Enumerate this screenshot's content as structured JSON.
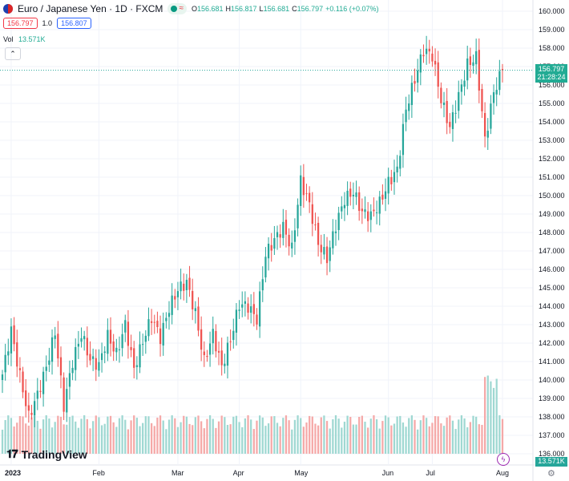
{
  "header": {
    "symbol_title": "Euro / Japanese Yen · 1D · FXCM",
    "open_label": "O",
    "open_value": "156.681",
    "high_label": "H",
    "high_value": "156.817",
    "low_label": "L",
    "low_value": "156.681",
    "close_label": "C",
    "close_value": "156.797",
    "change": "+0.116 (+0.07%)",
    "sell_price": "156.797",
    "spread": "1.0",
    "buy_price": "156.807",
    "volume_label": "Vol",
    "volume_value": "13.571K"
  },
  "price_tag": {
    "price": "156.797",
    "countdown": "21:28:24"
  },
  "volume_tag": "13.571K",
  "brand": "TradingView",
  "colors": {
    "up": "#26a69a",
    "down": "#ef5350",
    "up_vol": "#9fd8d2",
    "down_vol": "#f5a9a8",
    "grid": "#f0f3fa"
  },
  "chart_data": {
    "type": "candlestick",
    "series_name": "Euro / Japanese Yen · 1D · FXCM",
    "x_tick_labels": [
      "2023",
      "Feb",
      "Mar",
      "Apr",
      "May",
      "Jun",
      "Jul",
      "Aug"
    ],
    "y_tick_labels": [
      "136.000",
      "137.000",
      "138.000",
      "139.000",
      "140.000",
      "141.000",
      "142.000",
      "143.000",
      "144.000",
      "145.000",
      "146.000",
      "147.000",
      "148.000",
      "149.000",
      "150.000",
      "151.000",
      "152.000",
      "153.000",
      "154.000",
      "155.000",
      "156.000",
      "157.000",
      "158.000",
      "159.000",
      "160.000"
    ],
    "y_range": [
      136.0,
      160.0
    ],
    "last_price": 156.797,
    "anchors": [
      [
        140.3,
        "Jan"
      ],
      [
        142.7,
        "Jan"
      ],
      [
        140.2,
        "Jan"
      ],
      [
        138.0,
        "Jan"
      ],
      [
        139.2,
        ""
      ],
      [
        140.7,
        ""
      ],
      [
        142.6,
        ""
      ],
      [
        138.6,
        ""
      ],
      [
        141.0,
        ""
      ],
      [
        142.5,
        ""
      ],
      [
        141.1,
        ""
      ],
      [
        140.8,
        "Feb"
      ],
      [
        142.4,
        ""
      ],
      [
        141.4,
        ""
      ],
      [
        143.0,
        ""
      ],
      [
        140.6,
        ""
      ],
      [
        142.1,
        ""
      ],
      [
        143.4,
        ""
      ],
      [
        142.3,
        ""
      ],
      [
        143.9,
        ""
      ],
      [
        144.9,
        "Mar"
      ],
      [
        145.3,
        ""
      ],
      [
        143.6,
        ""
      ],
      [
        141.0,
        ""
      ],
      [
        142.5,
        ""
      ],
      [
        140.7,
        ""
      ],
      [
        142.2,
        ""
      ],
      [
        144.1,
        "Apr"
      ],
      [
        144.0,
        ""
      ],
      [
        143.3,
        ""
      ],
      [
        146.8,
        ""
      ],
      [
        147.6,
        ""
      ],
      [
        148.3,
        ""
      ],
      [
        147.1,
        ""
      ],
      [
        150.8,
        "May"
      ],
      [
        149.5,
        ""
      ],
      [
        147.4,
        ""
      ],
      [
        146.6,
        ""
      ],
      [
        148.4,
        ""
      ],
      [
        149.8,
        ""
      ],
      [
        150.2,
        ""
      ],
      [
        149.1,
        ""
      ],
      [
        148.9,
        ""
      ],
      [
        149.6,
        ""
      ],
      [
        150.7,
        "Jun"
      ],
      [
        151.4,
        ""
      ],
      [
        154.7,
        ""
      ],
      [
        156.3,
        ""
      ],
      [
        157.9,
        ""
      ],
      [
        157.6,
        "Jul"
      ],
      [
        155.2,
        ""
      ],
      [
        153.7,
        ""
      ],
      [
        155.4,
        ""
      ],
      [
        157.1,
        ""
      ],
      [
        157.5,
        ""
      ],
      [
        153.0,
        ""
      ],
      [
        155.6,
        ""
      ],
      [
        156.8,
        "Aug"
      ]
    ]
  }
}
